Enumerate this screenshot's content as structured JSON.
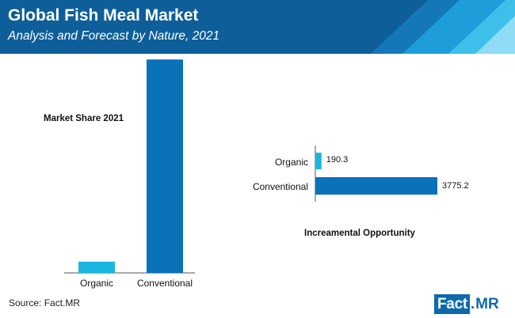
{
  "header": {
    "title": "Global Fish Meal Market",
    "subtitle": "Analysis and Forecast by Nature, 2021"
  },
  "chart_data": [
    {
      "type": "bar",
      "orientation": "vertical",
      "title": "Market Share 2021",
      "categories": [
        "Organic",
        "Conventional"
      ],
      "values": [
        5.0,
        95.0
      ],
      "unit": "%",
      "ylim": [
        0,
        100
      ],
      "colors": [
        "#1ab6e0",
        "#0a72b8"
      ],
      "grid": false
    },
    {
      "type": "bar",
      "orientation": "horizontal",
      "title": "Increamental Opportunity",
      "categories": [
        "Organic",
        "Conventional"
      ],
      "values": [
        190.3,
        3775.2
      ],
      "data_labels": [
        "190.3",
        "3775.2"
      ],
      "xlim": [
        0,
        3775.2
      ],
      "colors": [
        "#1ab6e0",
        "#0a72b8"
      ],
      "grid": false
    }
  ],
  "footer": {
    "source": "Source: Fact.MR",
    "logo_part1": "Fact",
    "logo_dot": ".",
    "logo_part2": "MR"
  },
  "colors": {
    "header_bg": "#0e5f99",
    "accent_light": "#1ab6e0",
    "accent_dark": "#0a72b8"
  }
}
